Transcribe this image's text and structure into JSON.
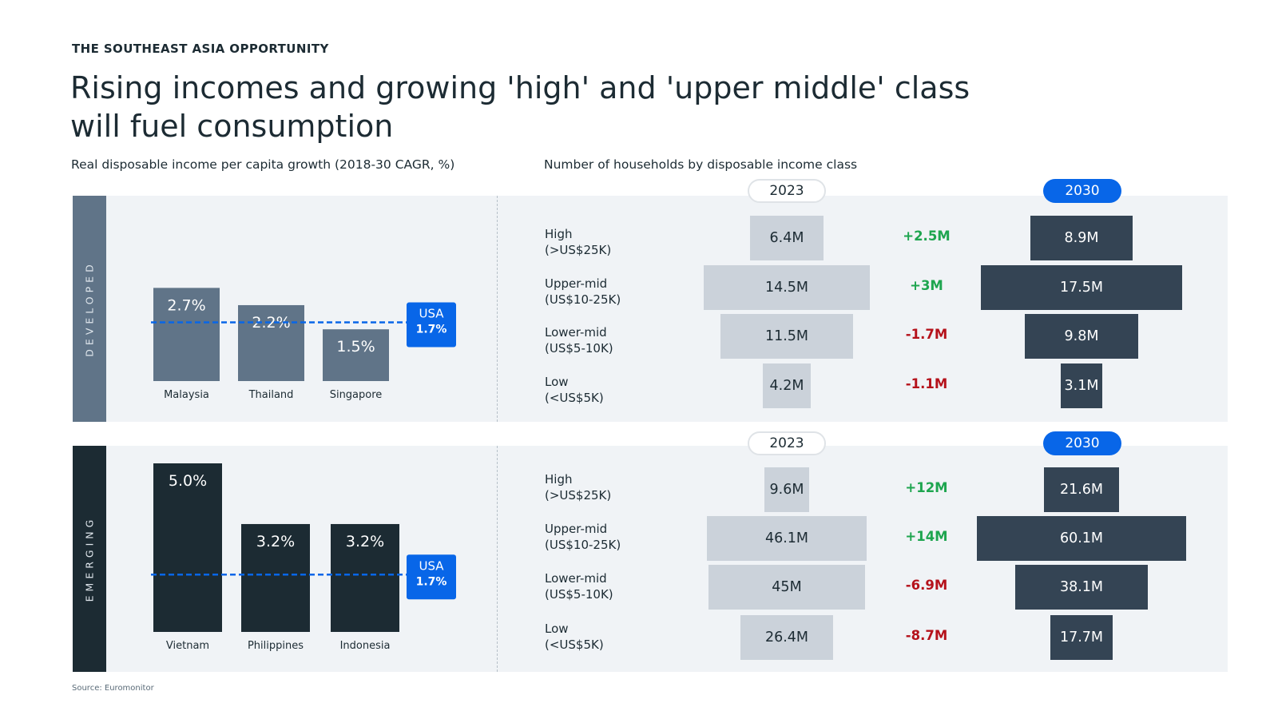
{
  "eyebrow": "THE SOUTHEAST ASIA OPPORTUNITY",
  "title_line1": "Rising incomes and growing 'high' and 'upper middle' class",
  "title_line2": "will fuel consumption",
  "left_subtitle": "Real disposable income per capita growth (2018-30 CAGR, %)",
  "right_subtitle": "Number of households by disposable income class",
  "source": "Source: Euromonitor",
  "colors": {
    "developed": "#607488",
    "emerging": "#1c2b33",
    "accent": "#0866e8",
    "bar2023": "#cbd2da",
    "bar2030": "#344454",
    "positive": "#1ea54f",
    "negative": "#b5121b"
  },
  "chart_data": [
    {
      "type": "bar",
      "title": "Real disposable income per capita growth (2018-30 CAGR, %)",
      "group": "DEVELOPED",
      "categories": [
        "Malaysia",
        "Thailand",
        "Singapore"
      ],
      "values": [
        2.7,
        2.2,
        1.5
      ],
      "labels": [
        "2.7%",
        "2.2%",
        "1.5%"
      ],
      "reference": {
        "name": "USA",
        "value": 1.7,
        "label": "1.7%"
      },
      "ylim": [
        0,
        5.0
      ]
    },
    {
      "type": "bar",
      "title": "Real disposable income per capita growth (2018-30 CAGR, %)",
      "group": "EMERGING",
      "categories": [
        "Vietnam",
        "Philippines",
        "Indonesia"
      ],
      "values": [
        5.0,
        3.2,
        3.2
      ],
      "labels": [
        "5.0%",
        "3.2%",
        "3.2%"
      ],
      "reference": {
        "name": "USA",
        "value": 1.7,
        "label": "1.7%"
      },
      "ylim": [
        0,
        5.0
      ]
    },
    {
      "type": "bar",
      "title": "Number of households by disposable income class",
      "group": "DEVELOPED",
      "year_a": "2023",
      "year_b": "2030",
      "rows": [
        {
          "class": "High",
          "range": "(>US$25K)",
          "v2023": 6.4,
          "l2023": "6.4M",
          "delta": "+2.5M",
          "v2030": 8.9,
          "l2030": "8.9M"
        },
        {
          "class": "Upper-mid",
          "range": "(US$10-25K)",
          "v2023": 14.5,
          "l2023": "14.5M",
          "delta": "+3M",
          "v2030": 17.5,
          "l2030": "17.5M"
        },
        {
          "class": "Lower-mid",
          "range": "(US$5-10K)",
          "v2023": 11.5,
          "l2023": "11.5M",
          "delta": "-1.7M",
          "v2030": 9.8,
          "l2030": "9.8M"
        },
        {
          "class": "Low",
          "range": "(<US$5K)",
          "v2023": 4.2,
          "l2023": "4.2M",
          "delta": "-1.1M",
          "v2030": 3.1,
          "l2030": "3.1M"
        }
      ]
    },
    {
      "type": "bar",
      "title": "Number of households by disposable income class",
      "group": "EMERGING",
      "year_a": "2023",
      "year_b": "2030",
      "rows": [
        {
          "class": "High",
          "range": "(>US$25K)",
          "v2023": 9.6,
          "l2023": "9.6M",
          "delta": "+12M",
          "v2030": 21.6,
          "l2030": "21.6M"
        },
        {
          "class": "Upper-mid",
          "range": "(US$10-25K)",
          "v2023": 46.1,
          "l2023": "46.1M",
          "delta": "+14M",
          "v2030": 60.1,
          "l2030": "60.1M"
        },
        {
          "class": "Lower-mid",
          "range": "(US$5-10K)",
          "v2023": 45,
          "l2023": "45M",
          "delta": "-6.9M",
          "v2030": 38.1,
          "l2030": "38.1M"
        },
        {
          "class": "Low",
          "range": "(<US$5K)",
          "v2023": 26.4,
          "l2023": "26.4M",
          "delta": "-8.7M",
          "v2030": 17.7,
          "l2030": "17.7M"
        }
      ]
    }
  ]
}
